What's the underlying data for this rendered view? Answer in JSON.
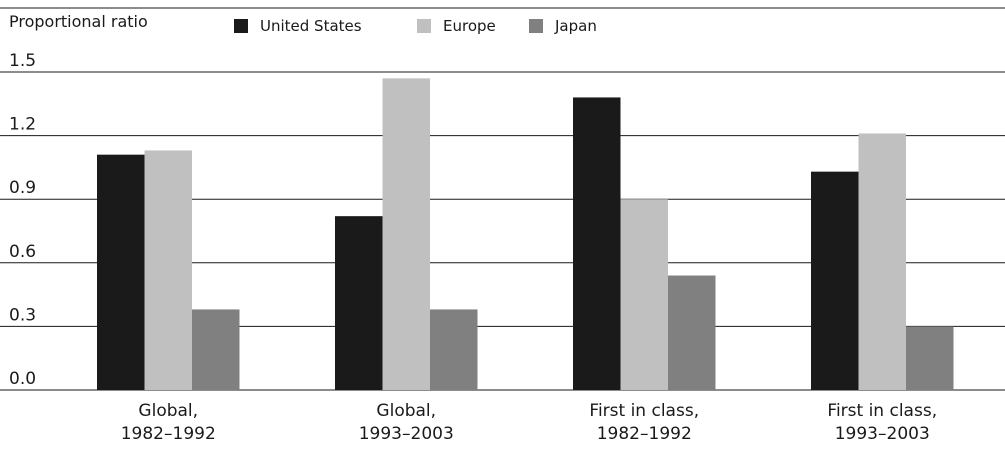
{
  "chart_data": {
    "type": "bar",
    "title": "",
    "ylabel": "Proportional ratio",
    "xlabel": "",
    "ylim": [
      0,
      1.5
    ],
    "yticks": [
      "0.0",
      "0.3",
      "0.6",
      "0.9",
      "1.2",
      "1.5"
    ],
    "categories": [
      [
        "Global,",
        "1982–1992"
      ],
      [
        "Global,",
        "1993–2003"
      ],
      [
        "First in class,",
        "1982–1992"
      ],
      [
        "First in class,",
        "1993–2003"
      ]
    ],
    "series": [
      {
        "name": "United States",
        "color": "#1a1a1a",
        "values": [
          1.11,
          0.82,
          1.38,
          1.03
        ]
      },
      {
        "name": "Europe",
        "color": "#c0c0c0",
        "values": [
          1.13,
          1.47,
          0.9,
          1.21
        ]
      },
      {
        "name": "Japan",
        "color": "#808080",
        "values": [
          0.38,
          0.38,
          0.54,
          0.3
        ]
      }
    ],
    "grid": true,
    "legend_position": "top"
  }
}
